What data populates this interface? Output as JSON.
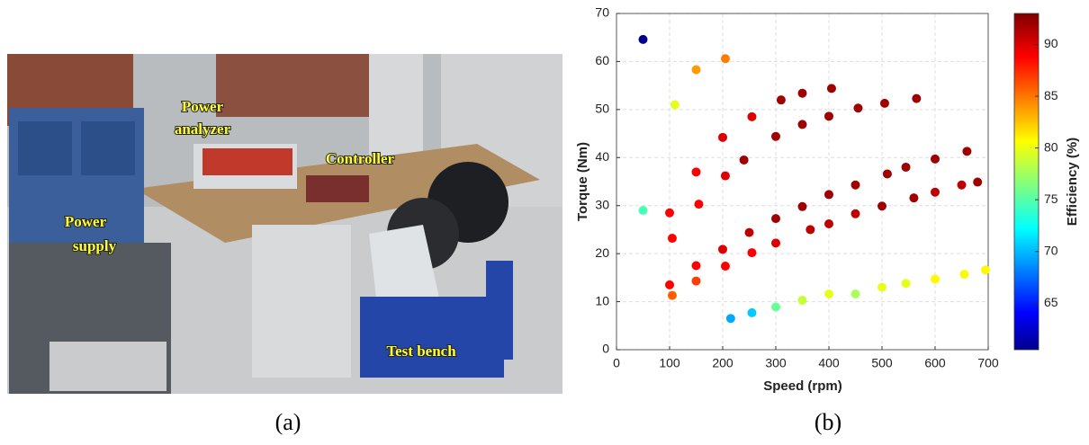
{
  "photo": {
    "labels": [
      [
        "Power",
        "analyzer"
      ],
      [
        "Controller"
      ],
      [
        "Power",
        "supply"
      ],
      [
        "Test bench"
      ]
    ]
  },
  "captions": [
    "(a)",
    "(b)"
  ],
  "chart_data": {
    "type": "scatter",
    "x_label": "Speed (rpm)",
    "y_label": "Torque (Nm)",
    "xlim": [
      0,
      700
    ],
    "ylim": [
      0,
      70
    ],
    "xticks": [
      0,
      100,
      200,
      300,
      400,
      500,
      600,
      700
    ],
    "yticks": [
      0,
      10,
      20,
      30,
      40,
      50,
      60,
      70
    ],
    "grid": true,
    "colormap": "jet",
    "colorbar": {
      "label": "Efficiency (%)",
      "lim": [
        60.5,
        93
      ],
      "ticks": [
        65,
        70,
        75,
        80,
        85,
        90
      ]
    },
    "x": [
      50,
      50,
      110,
      150,
      205,
      100,
      105,
      100,
      105,
      150,
      155,
      150,
      150,
      200,
      205,
      200,
      205,
      255,
      240,
      250,
      255,
      215,
      255,
      300,
      310,
      350,
      300,
      350,
      300,
      300,
      350,
      365,
      350,
      405,
      400,
      400,
      400,
      400,
      455,
      450,
      450,
      450,
      505,
      510,
      500,
      500,
      565,
      545,
      560,
      545,
      600,
      600,
      600,
      660,
      650,
      680,
      655,
      695
    ],
    "y": [
      64.6,
      29,
      51,
      58.3,
      60.6,
      28.5,
      23.2,
      13.5,
      11.3,
      37,
      30.3,
      17.5,
      14.3,
      44.2,
      36.2,
      20.9,
      17.4,
      48.5,
      39.5,
      24.4,
      20.2,
      6.5,
      7.7,
      8.9,
      52,
      53.4,
      44.4,
      46.9,
      27.3,
      22.2,
      29.8,
      25,
      10.3,
      54.4,
      48.6,
      32.3,
      26.2,
      11.6,
      50.3,
      34.3,
      28.3,
      11.6,
      51.3,
      36.6,
      29.9,
      13,
      52.3,
      38,
      31.6,
      13.8,
      39.7,
      32.8,
      14.7,
      41.3,
      34.3,
      34.9,
      15.7,
      16.6
    ],
    "efficiency": [
      61,
      75,
      80,
      84,
      85,
      89,
      89,
      89,
      86,
      89,
      89,
      89,
      87,
      90,
      90,
      90,
      89,
      90,
      92,
      91,
      89,
      70,
      71,
      76,
      92,
      92,
      92,
      92,
      92,
      90,
      92,
      91,
      79,
      92,
      92,
      92,
      91,
      80,
      92,
      92,
      91,
      78,
      92,
      92,
      92,
      80,
      92,
      92,
      92,
      80,
      92,
      91,
      81,
      92,
      91,
      92,
      81,
      81
    ]
  }
}
